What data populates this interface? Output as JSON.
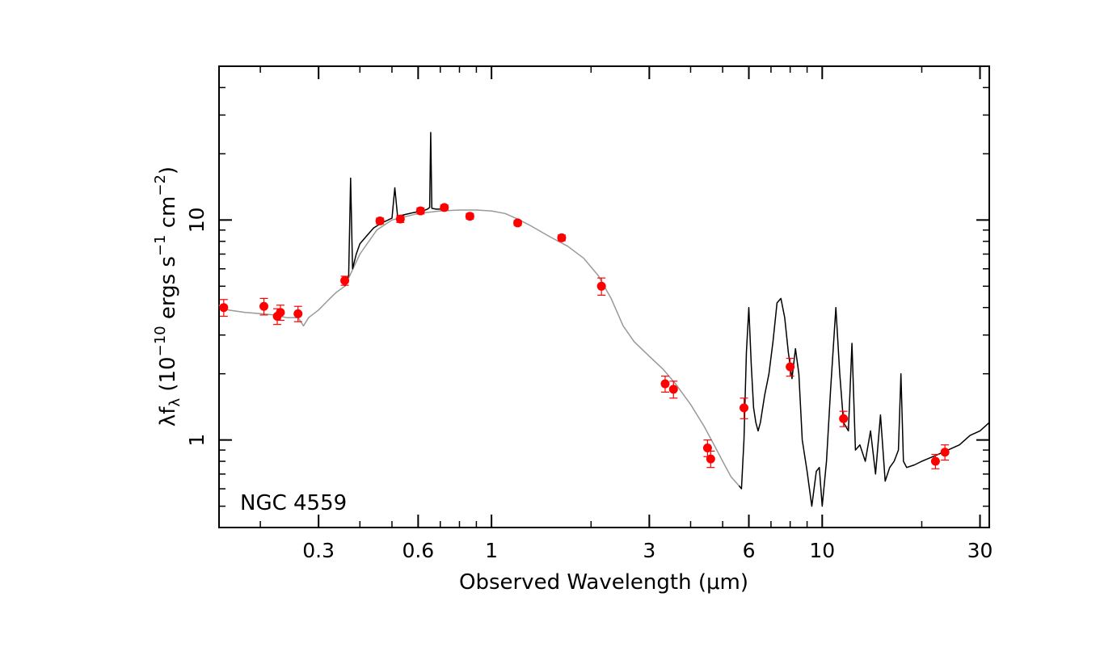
{
  "chart_data": {
    "type": "line",
    "xlabel": "Observed Wavelength (μm)",
    "ylabel": {
      "base": "λf",
      "base_sub": "λ",
      "open": " (10",
      "exp1": "−10",
      "mid": " ergs s",
      "exp2": "−1",
      "mid2": " cm",
      "exp3": "−2",
      "close": ")"
    },
    "x_scale": "log",
    "y_scale": "log",
    "xlim": [
      0.15,
      32
    ],
    "ylim": [
      0.4,
      50
    ],
    "x_ticks": [
      0.3,
      0.6,
      1,
      3,
      6,
      10,
      30
    ],
    "x_tick_labels": [
      "0.3",
      "0.6",
      "1",
      "3",
      "6",
      "10",
      "30"
    ],
    "y_ticks": [
      1,
      10
    ],
    "y_tick_labels": [
      "1",
      "10"
    ],
    "annotation": "NGC 4559",
    "grid": false,
    "colors": {
      "observed": "#000000",
      "model": "#999999",
      "photometry": "#ff0000"
    },
    "series": [
      {
        "role": "model",
        "color": "#999999",
        "x": [
          0.15,
          0.16,
          0.18,
          0.2,
          0.22,
          0.24,
          0.26,
          0.27,
          0.28,
          0.3,
          0.32,
          0.34,
          0.36,
          0.4,
          0.45,
          0.5,
          0.6,
          0.7,
          0.8,
          0.9,
          1.0,
          1.1,
          1.2,
          1.3,
          1.5,
          1.7,
          1.9,
          2.1,
          2.3,
          2.5,
          2.7,
          3.0,
          3.3,
          3.6,
          4.0,
          4.4,
          4.8,
          5.0,
          5.3,
          5.6
        ],
        "y": [
          4.1,
          3.9,
          3.8,
          3.75,
          3.7,
          3.6,
          3.6,
          3.3,
          3.6,
          3.9,
          4.3,
          4.7,
          5.0,
          7.0,
          9.0,
          10.0,
          10.7,
          11.0,
          11.1,
          11.1,
          11.0,
          10.7,
          10.1,
          9.5,
          8.4,
          7.6,
          6.7,
          5.6,
          4.4,
          3.3,
          2.8,
          2.4,
          2.1,
          1.8,
          1.45,
          1.15,
          0.9,
          0.8,
          0.68,
          0.62
        ]
      },
      {
        "role": "observed",
        "color": "#000000",
        "x": [
          0.36,
          0.37,
          0.375,
          0.38,
          0.39,
          0.4,
          0.42,
          0.44,
          0.46,
          0.48,
          0.5,
          0.51,
          0.52,
          0.55,
          0.58,
          0.6,
          0.62,
          0.64,
          0.65,
          0.655,
          0.66,
          0.68,
          0.7
        ],
        "y": [
          5.0,
          5.6,
          15.5,
          6.0,
          7.0,
          7.8,
          8.5,
          9.2,
          9.6,
          9.9,
          10.2,
          14.0,
          10.4,
          10.6,
          10.8,
          10.9,
          11.0,
          11.2,
          11.4,
          25.0,
          11.3,
          11.2,
          11.2
        ]
      },
      {
        "role": "observed",
        "color": "#000000",
        "x": [
          5.6,
          5.7,
          5.8,
          5.9,
          6.0,
          6.1,
          6.2,
          6.3,
          6.4,
          6.5,
          6.7,
          6.9,
          7.1,
          7.3,
          7.5,
          7.7,
          7.9,
          8.1,
          8.3,
          8.5,
          8.7,
          9.0,
          9.3,
          9.6,
          9.8,
          10.0,
          10.3,
          10.6,
          11.0,
          11.3,
          11.6,
          12.0,
          12.3,
          12.6,
          13.0,
          13.5,
          14.0,
          14.5,
          15.0,
          15.5,
          16.0,
          16.5,
          17.0,
          17.3,
          17.6,
          18.0,
          19.0,
          20.0,
          22.0,
          24.0,
          26.0,
          28.0,
          30.0,
          32.0
        ],
        "y": [
          0.62,
          0.6,
          1.0,
          2.5,
          4.0,
          2.2,
          1.4,
          1.2,
          1.1,
          1.2,
          1.6,
          2.0,
          2.8,
          4.2,
          4.4,
          3.6,
          2.5,
          1.9,
          2.6,
          2.0,
          1.0,
          0.72,
          0.5,
          0.72,
          0.75,
          0.5,
          0.8,
          1.7,
          4.0,
          2.0,
          1.2,
          1.1,
          2.75,
          0.9,
          0.95,
          0.8,
          1.1,
          0.7,
          1.3,
          0.65,
          0.75,
          0.8,
          0.9,
          2.0,
          0.8,
          0.75,
          0.77,
          0.8,
          0.85,
          0.9,
          0.95,
          1.05,
          1.1,
          1.2
        ]
      }
    ],
    "points": [
      {
        "x": 0.155,
        "y": 4.0,
        "err": 0.35
      },
      {
        "x": 0.205,
        "y": 4.05,
        "err": 0.35
      },
      {
        "x": 0.225,
        "y": 3.65,
        "err": 0.3
      },
      {
        "x": 0.23,
        "y": 3.8,
        "err": 0.3
      },
      {
        "x": 0.26,
        "y": 3.75,
        "err": 0.3
      },
      {
        "x": 0.36,
        "y": 5.3,
        "err": 0.25
      },
      {
        "x": 0.46,
        "y": 9.9,
        "err": 0.3
      },
      {
        "x": 0.53,
        "y": 10.1,
        "err": 0.35
      },
      {
        "x": 0.61,
        "y": 11.0,
        "err": 0.35
      },
      {
        "x": 0.72,
        "y": 11.4,
        "err": 0.3
      },
      {
        "x": 0.86,
        "y": 10.4,
        "err": 0.3
      },
      {
        "x": 1.2,
        "y": 9.7,
        "err": 0.25
      },
      {
        "x": 1.63,
        "y": 8.3,
        "err": 0.25
      },
      {
        "x": 2.15,
        "y": 5.0,
        "err": 0.45
      },
      {
        "x": 3.35,
        "y": 1.8,
        "err": 0.15
      },
      {
        "x": 3.55,
        "y": 1.7,
        "err": 0.15
      },
      {
        "x": 4.5,
        "y": 0.92,
        "err": 0.08
      },
      {
        "x": 4.6,
        "y": 0.82,
        "err": 0.07
      },
      {
        "x": 5.8,
        "y": 1.4,
        "err": 0.15
      },
      {
        "x": 8.0,
        "y": 2.15,
        "err": 0.2
      },
      {
        "x": 11.6,
        "y": 1.25,
        "err": 0.1
      },
      {
        "x": 22.0,
        "y": 0.8,
        "err": 0.06
      },
      {
        "x": 23.5,
        "y": 0.88,
        "err": 0.07
      }
    ]
  }
}
